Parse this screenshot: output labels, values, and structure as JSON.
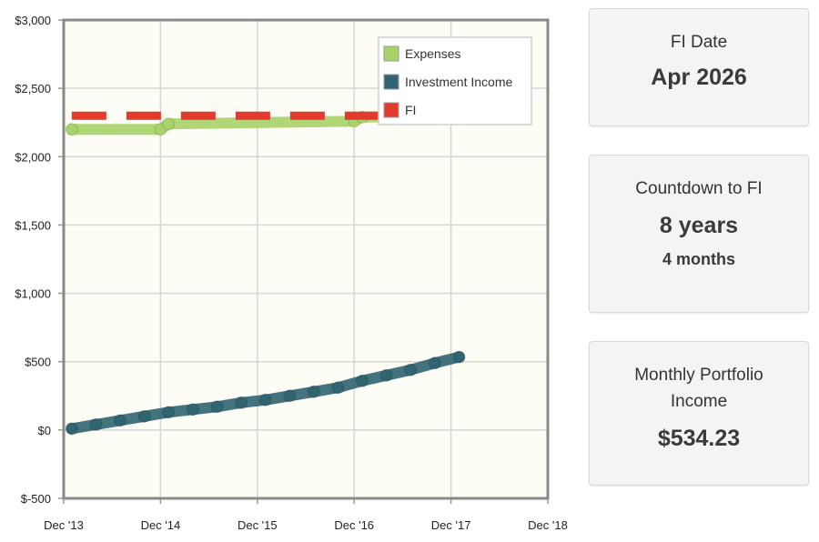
{
  "chart_data": {
    "type": "line",
    "y_ticks": [
      "$3,000",
      "$2,500",
      "$2,000",
      "$1,500",
      "$1,000",
      "$500",
      "$0",
      "$-500"
    ],
    "y_tick_values": [
      3000,
      2500,
      2000,
      1500,
      1000,
      500,
      0,
      -500
    ],
    "x_ticks": [
      "Dec '13",
      "Dec '14",
      "Dec '15",
      "Dec '16",
      "Dec '17",
      "Dec '18"
    ],
    "x_tick_values": [
      "2013-12",
      "2014-12",
      "2015-12",
      "2016-12",
      "2017-12",
      "2018-12"
    ],
    "ylim": [
      -500,
      3000
    ],
    "xlim": [
      "2013-12",
      "2018-12"
    ],
    "grid": true,
    "legend_position": "top-right",
    "series": [
      {
        "name": "Expenses",
        "color": "#a8d26a",
        "style": "dots",
        "points": [
          [
            "2014-01",
            2200
          ],
          [
            "2014-12",
            2200
          ],
          [
            "2015-01",
            2240
          ],
          [
            "2016-12",
            2260
          ],
          [
            "2017-01",
            2290
          ],
          [
            "2017-12",
            2300
          ]
        ]
      },
      {
        "name": "Investment Income",
        "color": "#2f6470",
        "style": "dots",
        "points": [
          [
            "2014-01",
            10
          ],
          [
            "2014-04",
            40
          ],
          [
            "2014-07",
            70
          ],
          [
            "2014-10",
            100
          ],
          [
            "2015-01",
            130
          ],
          [
            "2015-04",
            150
          ],
          [
            "2015-07",
            170
          ],
          [
            "2015-10",
            200
          ],
          [
            "2016-01",
            220
          ],
          [
            "2016-04",
            250
          ],
          [
            "2016-07",
            280
          ],
          [
            "2016-10",
            310
          ],
          [
            "2017-01",
            360
          ],
          [
            "2017-04",
            400
          ],
          [
            "2017-07",
            440
          ],
          [
            "2017-10",
            490
          ],
          [
            "2018-01",
            534
          ]
        ]
      },
      {
        "name": "FI",
        "color": "#e23b2e",
        "style": "dashed",
        "points": [
          [
            "2014-01",
            2300
          ],
          [
            "2017-12",
            2300
          ]
        ]
      }
    ]
  },
  "cards": {
    "fi_date": {
      "label": "FI Date",
      "value": "Apr 2026"
    },
    "countdown": {
      "label": "Countdown to FI",
      "value": "8 years",
      "sub": "4 months"
    },
    "portfolio": {
      "label": "Monthly Portfolio Income",
      "value": "$534.23"
    }
  }
}
